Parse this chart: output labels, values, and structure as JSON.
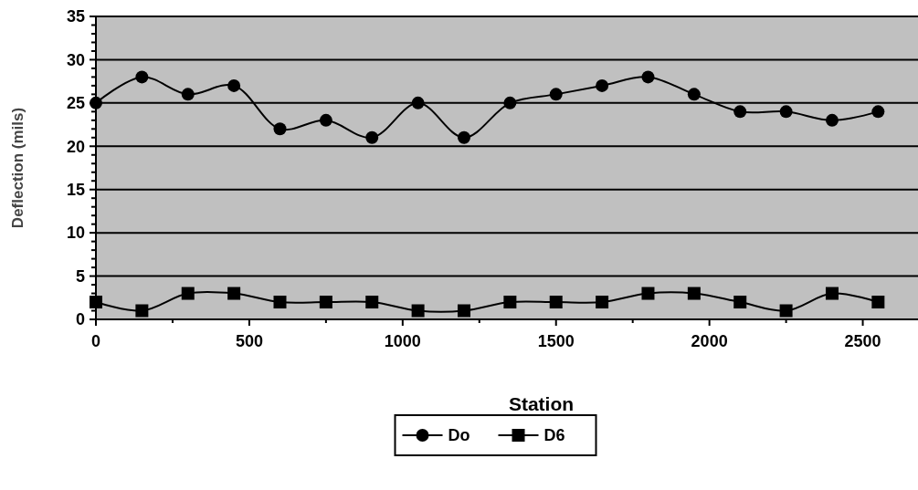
{
  "chart_data": {
    "type": "line",
    "xlabel": "Station",
    "ylabel": "Deflection (mils)",
    "x": [
      0,
      150,
      300,
      450,
      600,
      750,
      900,
      1050,
      1200,
      1350,
      1500,
      1650,
      1800,
      1950,
      2100,
      2250,
      2400,
      2550
    ],
    "series": [
      {
        "name": "Do",
        "color": "#000000",
        "marker": "circle",
        "values": [
          25,
          28,
          26,
          27,
          22,
          23,
          21,
          25,
          21,
          25,
          26,
          27,
          28,
          26,
          24,
          24,
          23,
          24
        ]
      },
      {
        "name": "D6",
        "color": "#000000",
        "marker": "square",
        "values": [
          2,
          1,
          3,
          3,
          2,
          2,
          2,
          1,
          1,
          2,
          2,
          2,
          3,
          3,
          2,
          1,
          3,
          2
        ]
      }
    ],
    "xlim": [
      0,
      2680
    ],
    "xticks": [
      0,
      {
        "value": 250,
        "label": null
      },
      500,
      {
        "value": 750,
        "label": null
      },
      1000,
      {
        "value": 1250,
        "label": null
      },
      1500,
      {
        "value": 1750,
        "label": null
      },
      2000,
      {
        "value": 2250,
        "label": null
      },
      2500
    ],
    "ylim": [
      0,
      35
    ],
    "yticks": [
      0,
      {
        "value": 1,
        "label": null
      },
      {
        "value": 2,
        "label": null
      },
      {
        "value": 3,
        "label": null
      },
      {
        "value": 4,
        "label": null
      },
      5,
      {
        "value": 6,
        "label": null
      },
      {
        "value": 7,
        "label": null
      },
      {
        "value": 8,
        "label": null
      },
      {
        "value": 9,
        "label": null
      },
      10,
      {
        "value": 11,
        "label": null
      },
      {
        "value": 12,
        "label": null
      },
      {
        "value": 13,
        "label": null
      },
      {
        "value": 14,
        "label": null
      },
      15,
      {
        "value": 16,
        "label": null
      },
      {
        "value": 17,
        "label": null
      },
      {
        "value": 18,
        "label": null
      },
      {
        "value": 19,
        "label": null
      },
      20,
      {
        "value": 21,
        "label": null
      },
      {
        "value": 22,
        "label": null
      },
      {
        "value": 23,
        "label": null
      },
      {
        "value": 24,
        "label": null
      },
      25,
      {
        "value": 26,
        "label": null
      },
      {
        "value": 27,
        "label": null
      },
      {
        "value": 28,
        "label": null
      },
      {
        "value": 29,
        "label": null
      },
      30,
      {
        "value": 31,
        "label": null
      },
      {
        "value": 32,
        "label": null
      },
      {
        "value": 33,
        "label": null
      },
      {
        "value": 34,
        "label": null
      },
      35
    ],
    "grid": "y",
    "legend": "bottom"
  }
}
